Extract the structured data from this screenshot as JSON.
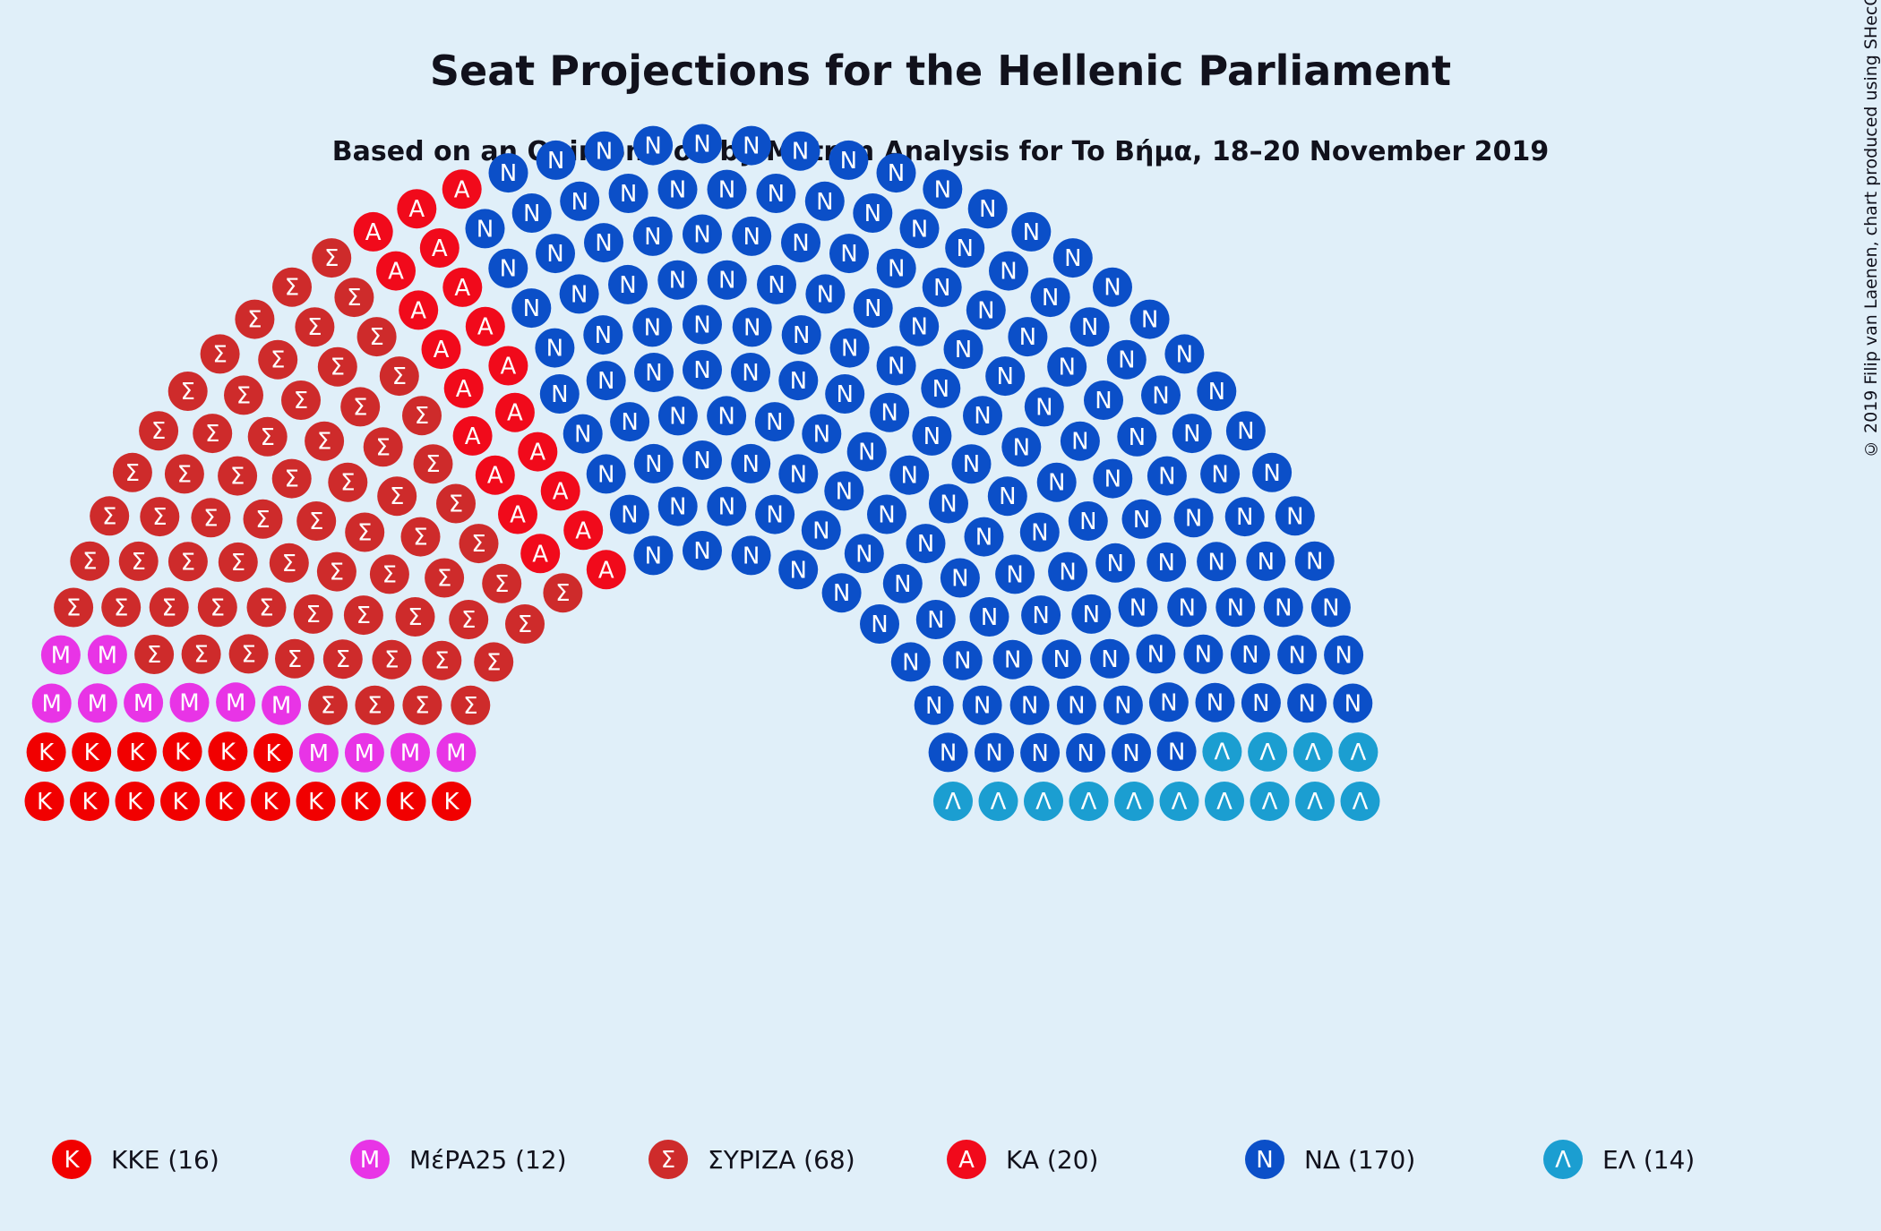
{
  "title": "Seat Projections for the Hellenic Parliament",
  "subtitle": "Based on an Opinion Poll by Metron Analysis for To Βήμα, 18–20 November 2019",
  "copyright": "© 2019 Filip van Laenen, chart produced using SHecC",
  "chart_data": {
    "type": "parliament",
    "total_seats": 300,
    "rows": 10,
    "parties": [
      {
        "name": "KKE",
        "label": "KKE (16)",
        "seats": 16,
        "symbol": "K",
        "color": "#f10000"
      },
      {
        "name": "MέPA25",
        "label": "MέPA25 (12)",
        "seats": 12,
        "symbol": "M",
        "color": "#e834e6"
      },
      {
        "name": "ΣΥΡΙΖΑ",
        "label": "ΣΥΡΙΖΑ (68)",
        "seats": 68,
        "symbol": "Σ",
        "color": "#ce2b2b"
      },
      {
        "name": "KA",
        "label": "KA (20)",
        "seats": 20,
        "symbol": "A",
        "color": "#f10a1b"
      },
      {
        "name": "NΔ",
        "label": "NΔ (170)",
        "seats": 170,
        "symbol": "N",
        "color": "#0b4fc8"
      },
      {
        "name": "EΛ",
        "label": "EΛ (14)",
        "seats": 14,
        "symbol": "Λ",
        "color": "#1b9ed1"
      }
    ]
  }
}
